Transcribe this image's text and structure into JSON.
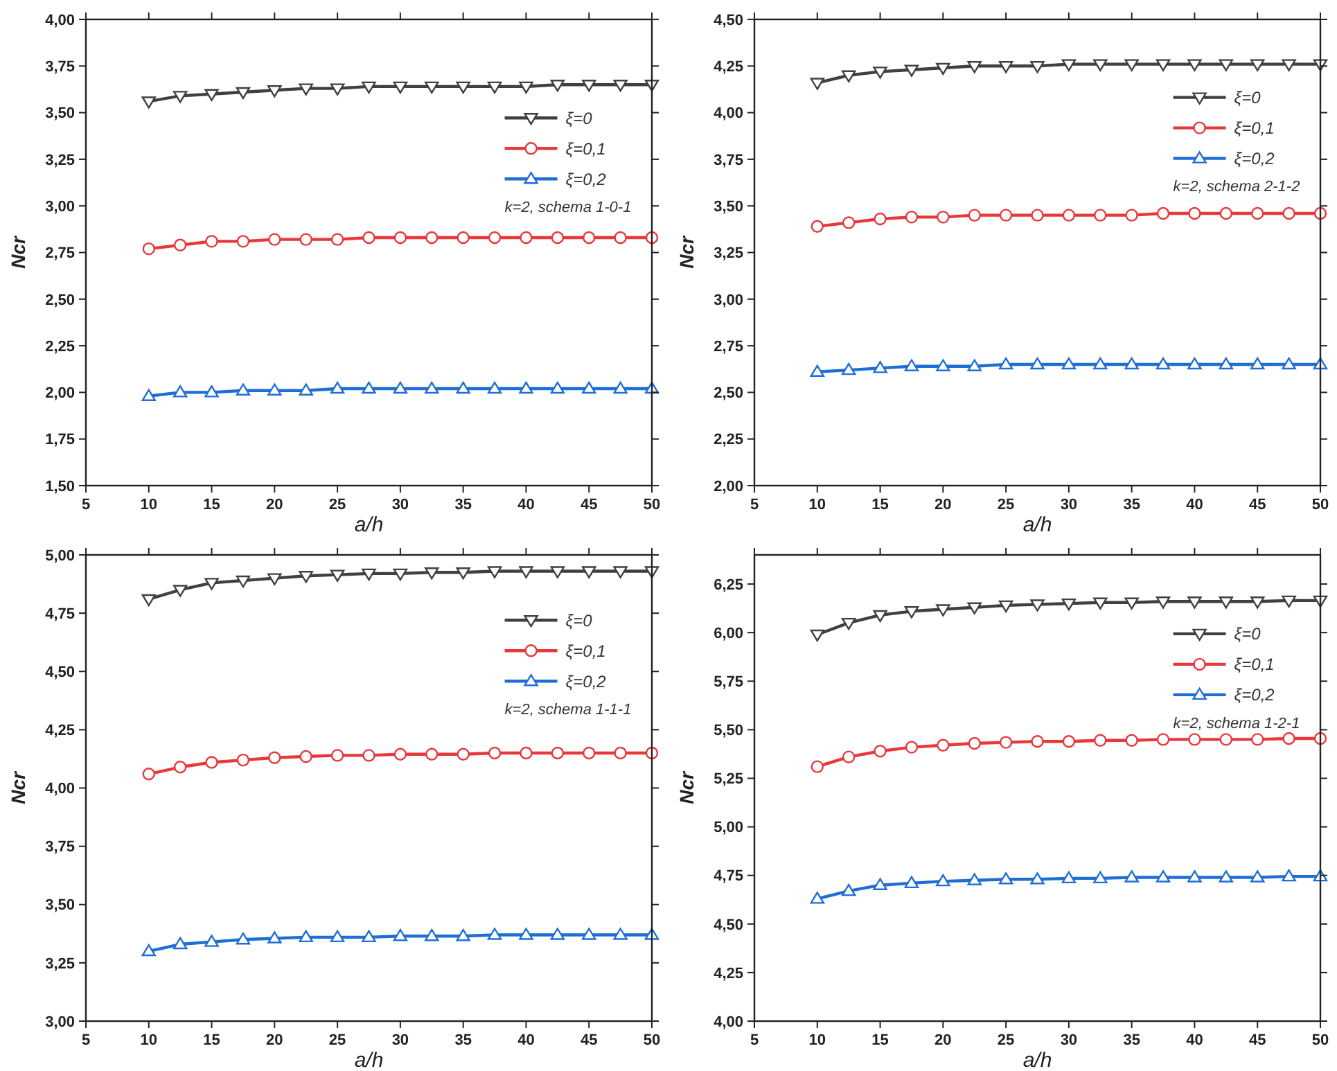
{
  "chart_data": [
    {
      "type": "line",
      "xlabel": "a/h",
      "ylabel": "Ncr",
      "legend": "top right",
      "annotations": [
        "k=2, schema 1-0-1"
      ],
      "x": [
        10,
        12.5,
        15,
        17.5,
        20,
        22.5,
        25,
        27.5,
        30,
        32.5,
        35,
        37.5,
        40,
        42.5,
        45,
        47.5,
        50
      ],
      "xlim": [
        5,
        50
      ],
      "xticks": [
        5,
        10,
        15,
        20,
        25,
        30,
        35,
        40,
        45,
        50
      ],
      "ylim": [
        1.5,
        4
      ],
      "yticks": [
        {
          "value": 1.5,
          "label": "1,50"
        },
        {
          "value": 1.75,
          "label": "1,75"
        },
        {
          "value": 2,
          "label": "2,00"
        },
        {
          "value": 2.25,
          "label": "2,25"
        },
        {
          "value": 2.5,
          "label": "2,50"
        },
        {
          "value": 2.75,
          "label": "2,75"
        },
        {
          "value": 3,
          "label": "3,00"
        },
        {
          "value": 3.25,
          "label": "3,25"
        },
        {
          "value": 3.5,
          "label": "3,50"
        },
        {
          "value": 3.75,
          "label": "3,75"
        },
        {
          "value": 4,
          "label": "4,00"
        }
      ],
      "series": [
        {
          "name": "ξ=0",
          "color": "#404040",
          "marker": "triangle-down",
          "values": [
            3.56,
            3.59,
            3.6,
            3.61,
            3.62,
            3.63,
            3.63,
            3.64,
            3.64,
            3.64,
            3.64,
            3.64,
            3.64,
            3.65,
            3.65,
            3.65,
            3.65
          ]
        },
        {
          "name": "ξ=0,1",
          "color": "#e8383b",
          "marker": "circle",
          "values": [
            2.77,
            2.79,
            2.81,
            2.81,
            2.82,
            2.82,
            2.82,
            2.83,
            2.83,
            2.83,
            2.83,
            2.83,
            2.83,
            2.83,
            2.83,
            2.83,
            2.83
          ]
        },
        {
          "name": "ξ=0,2",
          "color": "#1f6ed4",
          "marker": "triangle",
          "values": [
            1.98,
            2.0,
            2.0,
            2.01,
            2.01,
            2.01,
            2.02,
            2.02,
            2.02,
            2.02,
            2.02,
            2.02,
            2.02,
            2.02,
            2.02,
            2.02,
            2.02
          ]
        }
      ]
    },
    {
      "type": "line",
      "xlabel": "a/h",
      "ylabel": "Ncr",
      "legend": "top right",
      "annotations": [
        "k=2, schema 2-1-2"
      ],
      "x": [
        10,
        12.5,
        15,
        17.5,
        20,
        22.5,
        25,
        27.5,
        30,
        32.5,
        35,
        37.5,
        40,
        42.5,
        45,
        47.5,
        50
      ],
      "xlim": [
        5,
        50
      ],
      "xticks": [
        5,
        10,
        15,
        20,
        25,
        30,
        35,
        40,
        45,
        50
      ],
      "ylim": [
        2,
        4.5
      ],
      "yticks": [
        {
          "value": 2,
          "label": "2,00"
        },
        {
          "value": 2.25,
          "label": "2,25"
        },
        {
          "value": 2.5,
          "label": "2,50"
        },
        {
          "value": 2.75,
          "label": "2,75"
        },
        {
          "value": 3,
          "label": "3,00"
        },
        {
          "value": 3.25,
          "label": "3,25"
        },
        {
          "value": 3.5,
          "label": "3,50"
        },
        {
          "value": 3.75,
          "label": "3,75"
        },
        {
          "value": 4,
          "label": "4,00"
        },
        {
          "value": 4.25,
          "label": "4,25"
        },
        {
          "value": 4.5,
          "label": "4,50"
        }
      ],
      "series": [
        {
          "name": "ξ=0",
          "color": "#404040",
          "marker": "triangle-down",
          "values": [
            4.16,
            4.2,
            4.22,
            4.23,
            4.24,
            4.25,
            4.25,
            4.25,
            4.26,
            4.26,
            4.26,
            4.26,
            4.26,
            4.26,
            4.26,
            4.26,
            4.26
          ]
        },
        {
          "name": "ξ=0,1",
          "color": "#e8383b",
          "marker": "circle",
          "values": [
            3.39,
            3.41,
            3.43,
            3.44,
            3.44,
            3.45,
            3.45,
            3.45,
            3.45,
            3.45,
            3.45,
            3.46,
            3.46,
            3.46,
            3.46,
            3.46,
            3.46
          ]
        },
        {
          "name": "ξ=0,2",
          "color": "#1f6ed4",
          "marker": "triangle",
          "values": [
            2.61,
            2.62,
            2.63,
            2.64,
            2.64,
            2.64,
            2.65,
            2.65,
            2.65,
            2.65,
            2.65,
            2.65,
            2.65,
            2.65,
            2.65,
            2.65,
            2.65
          ]
        }
      ]
    },
    {
      "type": "line",
      "xlabel": "a/h",
      "ylabel": "Ncr",
      "legend": "top right",
      "annotations": [
        "k=2, schema 1-1-1"
      ],
      "x": [
        10,
        12.5,
        15,
        17.5,
        20,
        22.5,
        25,
        27.5,
        30,
        32.5,
        35,
        37.5,
        40,
        42.5,
        45,
        47.5,
        50
      ],
      "xlim": [
        5,
        50
      ],
      "xticks": [
        5,
        10,
        15,
        20,
        25,
        30,
        35,
        40,
        45,
        50
      ],
      "ylim": [
        3,
        5
      ],
      "yticks": [
        {
          "value": 3,
          "label": "3,00"
        },
        {
          "value": 3.25,
          "label": "3,25"
        },
        {
          "value": 3.5,
          "label": "3,50"
        },
        {
          "value": 3.75,
          "label": "3,75"
        },
        {
          "value": 4,
          "label": "4,00"
        },
        {
          "value": 4.25,
          "label": "4,25"
        },
        {
          "value": 4.5,
          "label": "4,50"
        },
        {
          "value": 4.75,
          "label": "4,75"
        },
        {
          "value": 5,
          "label": "5,00"
        }
      ],
      "series": [
        {
          "name": "ξ=0",
          "color": "#404040",
          "marker": "triangle-down",
          "values": [
            4.81,
            4.85,
            4.88,
            4.89,
            4.9,
            4.91,
            4.915,
            4.92,
            4.92,
            4.925,
            4.925,
            4.93,
            4.93,
            4.93,
            4.93,
            4.93,
            4.93
          ]
        },
        {
          "name": "ξ=0,1",
          "color": "#e8383b",
          "marker": "circle",
          "values": [
            4.06,
            4.09,
            4.11,
            4.12,
            4.13,
            4.135,
            4.14,
            4.14,
            4.145,
            4.145,
            4.145,
            4.15,
            4.15,
            4.15,
            4.15,
            4.15,
            4.15
          ]
        },
        {
          "name": "ξ=0,2",
          "color": "#1f6ed4",
          "marker": "triangle",
          "values": [
            3.3,
            3.33,
            3.34,
            3.35,
            3.355,
            3.36,
            3.36,
            3.36,
            3.365,
            3.365,
            3.365,
            3.37,
            3.37,
            3.37,
            3.37,
            3.37,
            3.37
          ]
        }
      ]
    },
    {
      "type": "line",
      "xlabel": "a/h",
      "ylabel": "Ncr",
      "legend": "top right",
      "annotations": [
        "k=2, schema 1-2-1"
      ],
      "x": [
        10,
        12.5,
        15,
        17.5,
        20,
        22.5,
        25,
        27.5,
        30,
        32.5,
        35,
        37.5,
        40,
        42.5,
        45,
        47.5,
        50
      ],
      "xlim": [
        5,
        50
      ],
      "xticks": [
        5,
        10,
        15,
        20,
        25,
        30,
        35,
        40,
        45,
        50
      ],
      "ylim": [
        4,
        6.4
      ],
      "yticks": [
        {
          "value": 4,
          "label": "4,00"
        },
        {
          "value": 4.25,
          "label": "4,25"
        },
        {
          "value": 4.5,
          "label": "4,50"
        },
        {
          "value": 4.75,
          "label": "4,75"
        },
        {
          "value": 5,
          "label": "5,00"
        },
        {
          "value": 5.25,
          "label": "5,25"
        },
        {
          "value": 5.5,
          "label": "5,50"
        },
        {
          "value": 5.75,
          "label": "5,75"
        },
        {
          "value": 6,
          "label": "6,00"
        },
        {
          "value": 6.25,
          "label": "6,25"
        }
      ],
      "series": [
        {
          "name": "ξ=0",
          "color": "#404040",
          "marker": "triangle-down",
          "values": [
            5.99,
            6.05,
            6.09,
            6.11,
            6.12,
            6.13,
            6.14,
            6.145,
            6.15,
            6.155,
            6.155,
            6.16,
            6.16,
            6.16,
            6.16,
            6.165,
            6.165
          ]
        },
        {
          "name": "ξ=0,1",
          "color": "#e8383b",
          "marker": "circle",
          "values": [
            5.31,
            5.36,
            5.39,
            5.41,
            5.42,
            5.43,
            5.435,
            5.44,
            5.44,
            5.445,
            5.445,
            5.45,
            5.45,
            5.45,
            5.45,
            5.455,
            5.455
          ]
        },
        {
          "name": "ξ=0,2",
          "color": "#1f6ed4",
          "marker": "triangle",
          "values": [
            4.63,
            4.67,
            4.7,
            4.71,
            4.72,
            4.725,
            4.73,
            4.73,
            4.735,
            4.735,
            4.74,
            4.74,
            4.74,
            4.74,
            4.74,
            4.745,
            4.745
          ]
        }
      ]
    }
  ]
}
